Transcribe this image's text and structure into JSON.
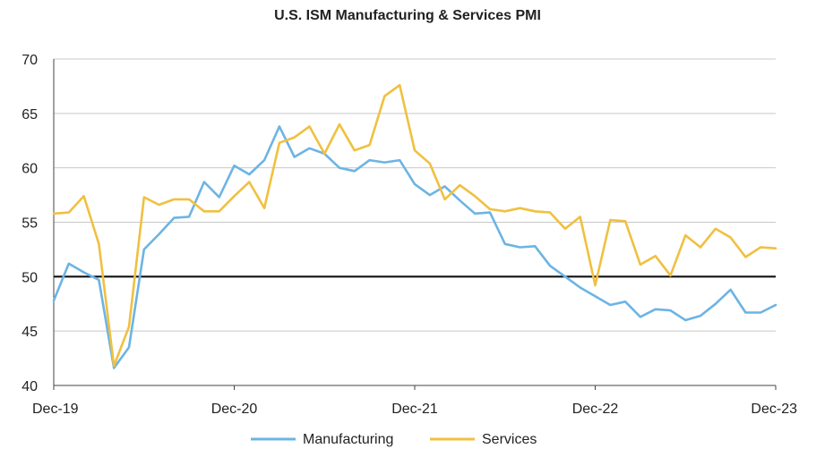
{
  "chart_data": {
    "type": "line",
    "title": "U.S. ISM Manufacturing & Services PMI",
    "xlabel": "",
    "ylabel": "",
    "ylim": [
      40,
      70
    ],
    "yticks": [
      40,
      45,
      50,
      55,
      60,
      65,
      70
    ],
    "xtick_labels": [
      "Dec-19",
      "Dec-20",
      "Dec-21",
      "Dec-22",
      "Dec-23"
    ],
    "reference_line": 50,
    "grid": true,
    "legend_position": "bottom",
    "x": [
      "Dec-19",
      "Jan-20",
      "Feb-20",
      "Mar-20",
      "Apr-20",
      "May-20",
      "Jun-20",
      "Jul-20",
      "Aug-20",
      "Sep-20",
      "Oct-20",
      "Nov-20",
      "Dec-20",
      "Jan-21",
      "Feb-21",
      "Mar-21",
      "Apr-21",
      "May-21",
      "Jun-21",
      "Jul-21",
      "Aug-21",
      "Sep-21",
      "Oct-21",
      "Nov-21",
      "Dec-21",
      "Jan-22",
      "Feb-22",
      "Mar-22",
      "Apr-22",
      "May-22",
      "Jun-22",
      "Jul-22",
      "Aug-22",
      "Sep-22",
      "Oct-22",
      "Nov-22",
      "Dec-22",
      "Jan-23",
      "Feb-23",
      "Mar-23",
      "Apr-23",
      "May-23",
      "Jun-23",
      "Jul-23",
      "Aug-23",
      "Sep-23",
      "Oct-23",
      "Nov-23",
      "Dec-23"
    ],
    "series": [
      {
        "name": "Manufacturing",
        "color": "#6cb4e4",
        "values": [
          47.8,
          51.2,
          50.4,
          49.7,
          41.6,
          43.5,
          52.5,
          53.9,
          55.4,
          55.5,
          58.7,
          57.3,
          60.2,
          59.4,
          60.7,
          63.8,
          61.0,
          61.8,
          61.3,
          60.0,
          59.7,
          60.7,
          60.5,
          60.7,
          58.5,
          57.5,
          58.3,
          57.0,
          55.8,
          55.9,
          53.0,
          52.7,
          52.8,
          51.0,
          50.0,
          49.0,
          48.2,
          47.4,
          47.7,
          46.3,
          47.0,
          46.9,
          46.0,
          46.4,
          47.5,
          48.8,
          46.7,
          46.7,
          47.4
        ]
      },
      {
        "name": "Services",
        "color": "#f0c040",
        "values": [
          55.8,
          55.9,
          57.4,
          53.0,
          41.8,
          45.4,
          57.3,
          56.6,
          57.1,
          57.1,
          56.0,
          56.0,
          57.4,
          58.7,
          56.3,
          62.3,
          62.8,
          63.8,
          61.3,
          64.0,
          61.6,
          62.1,
          66.6,
          67.6,
          61.6,
          60.4,
          57.1,
          58.4,
          57.4,
          56.2,
          56.0,
          56.3,
          56.0,
          55.9,
          54.4,
          55.5,
          49.2,
          55.2,
          55.1,
          51.1,
          51.9,
          50.1,
          53.8,
          52.7,
          54.4,
          53.6,
          51.8,
          52.7,
          52.6
        ]
      }
    ]
  }
}
